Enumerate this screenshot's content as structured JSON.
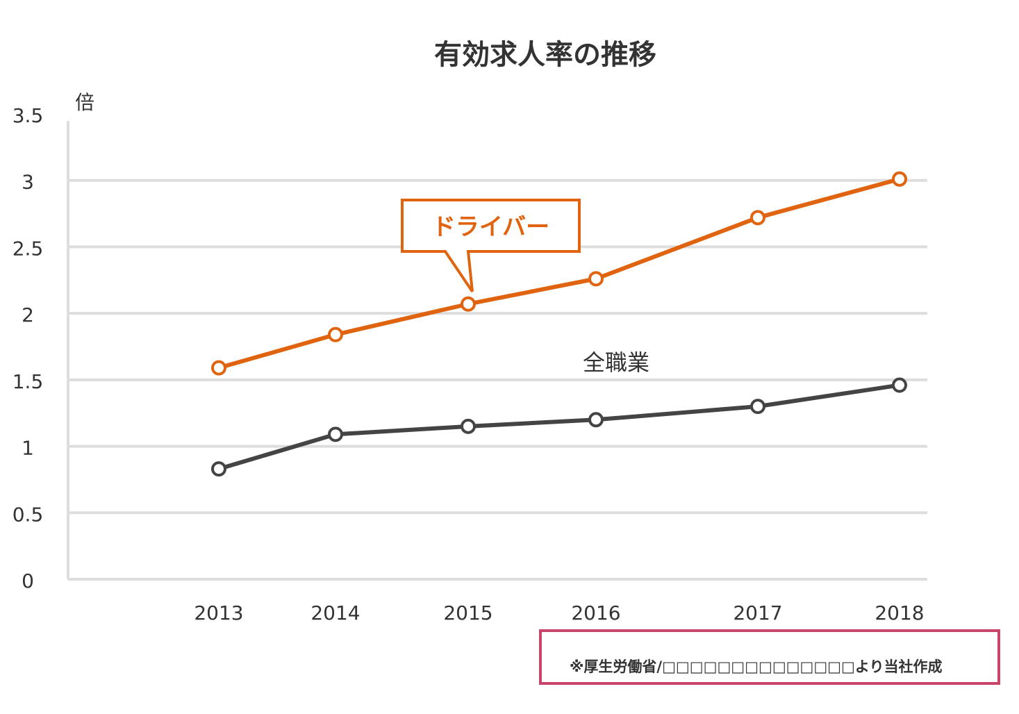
{
  "chart_data": {
    "type": "line",
    "title": "有効求人率の推移",
    "ylabel": "倍",
    "xlabel": "",
    "categories": [
      "2013",
      "2014",
      "2015",
      "2016",
      "2017",
      "2018"
    ],
    "ylim": [
      0,
      3.5
    ],
    "yticks": [
      "0",
      "0.5",
      "1",
      "1.5",
      "2",
      "2.5",
      "3",
      "3.5"
    ],
    "grid": true,
    "series": [
      {
        "name": "ドライバー",
        "values": [
          1.59,
          1.84,
          2.07,
          2.26,
          2.72,
          3.01
        ],
        "color": "#e06410",
        "label_style": "callout"
      },
      {
        "name": "全職業",
        "values": [
          0.83,
          1.09,
          1.15,
          1.2,
          1.3,
          1.46
        ],
        "color": "#444444",
        "label_style": "text"
      }
    ]
  },
  "source_note": "※厚生労働省/□□□□□□□□□□□□□□より当社作成",
  "colors": {
    "grid": "#dddddd",
    "axis": "#dddddd",
    "source_border": "#c8456a"
  }
}
